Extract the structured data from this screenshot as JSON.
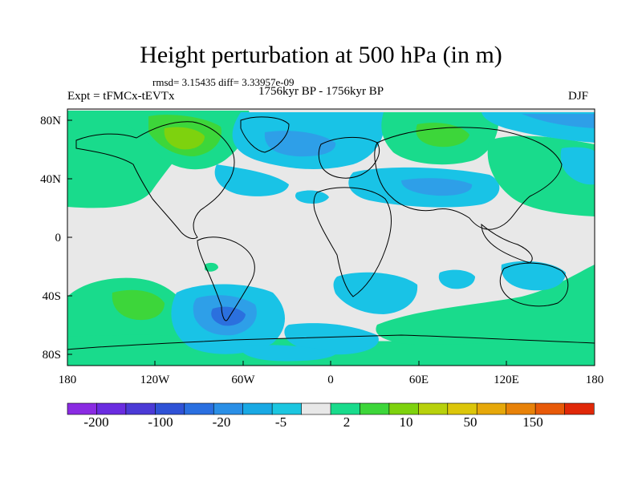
{
  "title": "Height perturbation at 500 hPa (in m)",
  "stats": "rmsd= 3.15435 diff= 3.33957e-09",
  "expt": "Expt = tFMCx-tEVTx",
  "period": "1756kyr BP - 1756kyr BP",
  "season": "DJF",
  "y_ticks": [
    "80N",
    "40N",
    "0",
    "40S",
    "80S"
  ],
  "x_ticks": [
    "180",
    "120W",
    "60W",
    "0",
    "60E",
    "120E",
    "180"
  ],
  "colorbar": {
    "labels": [
      "-200",
      "-100",
      "-20",
      "-5",
      "2",
      "10",
      "50",
      "150"
    ],
    "colors": [
      "#8a2be2",
      "#6a2ce0",
      "#4b3ad6",
      "#2f52d6",
      "#2a6fe0",
      "#2a8fe6",
      "#19a9e4",
      "#1cc6e0",
      "#e8e8e8",
      "#19db8c",
      "#3dd63a",
      "#7ed20e",
      "#b8d10c",
      "#dcc60a",
      "#e6a80a",
      "#e88208",
      "#e85a08",
      "#e02808"
    ]
  },
  "colors": {
    "land_bg": "#e8e8e8",
    "neg_light": "#19c3e6",
    "neg_mid": "#2e9fe8",
    "neg_dark": "#2b70de",
    "pos_light": "#19db8c",
    "pos_mid": "#3dd63a",
    "pos_strong": "#7ed20e"
  }
}
